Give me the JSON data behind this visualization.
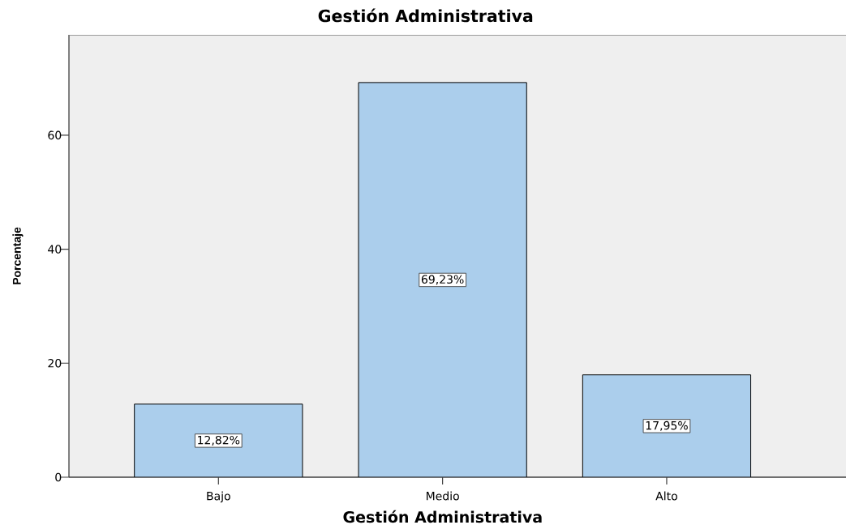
{
  "chart_data": {
    "type": "bar",
    "title": "Gestión Administrativa",
    "xlabel": "Gestión Administrativa",
    "ylabel": "Porcentaje",
    "categories": [
      "Bajo",
      "Medio",
      "Alto"
    ],
    "values": [
      12.82,
      69.23,
      17.95
    ],
    "value_labels": [
      "12,82%",
      "69,23%",
      "17,95%"
    ],
    "color": "#abceec",
    "ylim": [
      0,
      77.6
    ],
    "yticks": [
      0,
      20,
      40,
      60
    ]
  }
}
